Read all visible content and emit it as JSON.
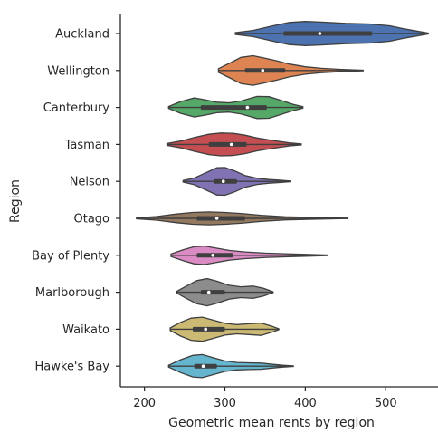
{
  "chart_data": {
    "type": "violin",
    "orientation": "horizontal",
    "title": "",
    "xlabel": "Geometric mean rents by region",
    "ylabel": "Region",
    "xlim": [
      170,
      565
    ],
    "xticks": [
      200,
      300,
      400,
      500
    ],
    "grid": false,
    "categories": [
      "Auckland",
      "Wellington",
      "Canterbury",
      "Tasman",
      "Nelson",
      "Otago",
      "Bay of Plenty",
      "Marlborough",
      "Waikato",
      "Hawke's Bay"
    ],
    "colors": [
      "#4c72b0",
      "#dd8452",
      "#55a868",
      "#c44e52",
      "#8172b3",
      "#937860",
      "#da8bc3",
      "#8c8c8c",
      "#ccb974",
      "#64b5cd"
    ],
    "series": [
      {
        "category": "Auckland",
        "min": 313,
        "q1": 373,
        "median": 418,
        "q3": 483,
        "max": 553,
        "density": [
          [
            313,
            0.06
          ],
          [
            335,
            0.2
          ],
          [
            360,
            0.5
          ],
          [
            380,
            0.72
          ],
          [
            400,
            0.78
          ],
          [
            420,
            0.74
          ],
          [
            450,
            0.66
          ],
          [
            480,
            0.62
          ],
          [
            505,
            0.5
          ],
          [
            525,
            0.28
          ],
          [
            545,
            0.1
          ],
          [
            553,
            0.03
          ]
        ]
      },
      {
        "category": "Wellington",
        "min": 292,
        "q1": 325,
        "median": 347,
        "q3": 375,
        "max": 472,
        "density": [
          [
            292,
            0.12
          ],
          [
            305,
            0.45
          ],
          [
            320,
            0.85
          ],
          [
            335,
            0.96
          ],
          [
            350,
            0.8
          ],
          [
            365,
            0.62
          ],
          [
            380,
            0.42
          ],
          [
            400,
            0.24
          ],
          [
            420,
            0.14
          ],
          [
            445,
            0.07
          ],
          [
            472,
            0.02
          ]
        ]
      },
      {
        "category": "Canterbury",
        "min": 230,
        "q1": 270,
        "median": 328,
        "q3": 352,
        "max": 397,
        "density": [
          [
            230,
            0.06
          ],
          [
            245,
            0.38
          ],
          [
            262,
            0.62
          ],
          [
            275,
            0.5
          ],
          [
            290,
            0.34
          ],
          [
            305,
            0.3
          ],
          [
            320,
            0.42
          ],
          [
            340,
            0.72
          ],
          [
            355,
            0.7
          ],
          [
            370,
            0.45
          ],
          [
            385,
            0.2
          ],
          [
            397,
            0.05
          ]
        ]
      },
      {
        "category": "Tasman",
        "min": 228,
        "q1": 280,
        "median": 308,
        "q3": 327,
        "max": 395,
        "density": [
          [
            228,
            0.06
          ],
          [
            245,
            0.22
          ],
          [
            262,
            0.45
          ],
          [
            280,
            0.66
          ],
          [
            295,
            0.74
          ],
          [
            310,
            0.72
          ],
          [
            325,
            0.6
          ],
          [
            340,
            0.42
          ],
          [
            360,
            0.25
          ],
          [
            380,
            0.1
          ],
          [
            395,
            0.03
          ]
        ]
      },
      {
        "category": "Nelson",
        "min": 248,
        "q1": 286,
        "median": 298,
        "q3": 315,
        "max": 382,
        "density": [
          [
            248,
            0.05
          ],
          [
            262,
            0.22
          ],
          [
            276,
            0.55
          ],
          [
            290,
            0.88
          ],
          [
            300,
            0.9
          ],
          [
            312,
            0.68
          ],
          [
            325,
            0.38
          ],
          [
            340,
            0.2
          ],
          [
            355,
            0.12
          ],
          [
            370,
            0.07
          ],
          [
            382,
            0.02
          ]
        ]
      },
      {
        "category": "Otago",
        "min": 190,
        "q1": 265,
        "median": 290,
        "q3": 325,
        "max": 453,
        "density": [
          [
            190,
            0.03
          ],
          [
            215,
            0.12
          ],
          [
            240,
            0.28
          ],
          [
            260,
            0.38
          ],
          [
            280,
            0.42
          ],
          [
            300,
            0.38
          ],
          [
            320,
            0.32
          ],
          [
            345,
            0.2
          ],
          [
            375,
            0.1
          ],
          [
            410,
            0.06
          ],
          [
            453,
            0.01
          ]
        ]
      },
      {
        "category": "Bay of Plenty",
        "min": 233,
        "q1": 265,
        "median": 285,
        "q3": 310,
        "max": 428,
        "density": [
          [
            233,
            0.08
          ],
          [
            248,
            0.35
          ],
          [
            262,
            0.56
          ],
          [
            275,
            0.6
          ],
          [
            290,
            0.46
          ],
          [
            305,
            0.32
          ],
          [
            325,
            0.22
          ],
          [
            350,
            0.14
          ],
          [
            375,
            0.1
          ],
          [
            400,
            0.06
          ],
          [
            428,
            0.02
          ]
        ]
      },
      {
        "category": "Marlborough",
        "min": 240,
        "q1": 270,
        "median": 280,
        "q3": 300,
        "max": 360,
        "density": [
          [
            240,
            0.05
          ],
          [
            252,
            0.4
          ],
          [
            265,
            0.75
          ],
          [
            278,
            0.88
          ],
          [
            290,
            0.72
          ],
          [
            305,
            0.45
          ],
          [
            320,
            0.35
          ],
          [
            335,
            0.4
          ],
          [
            348,
            0.25
          ],
          [
            360,
            0.03
          ]
        ]
      },
      {
        "category": "Waikato",
        "min": 232,
        "q1": 260,
        "median": 276,
        "q3": 300,
        "max": 367,
        "density": [
          [
            232,
            0.08
          ],
          [
            245,
            0.45
          ],
          [
            258,
            0.72
          ],
          [
            272,
            0.78
          ],
          [
            285,
            0.6
          ],
          [
            300,
            0.38
          ],
          [
            315,
            0.3
          ],
          [
            330,
            0.35
          ],
          [
            345,
            0.4
          ],
          [
            358,
            0.2
          ],
          [
            367,
            0.03
          ]
        ]
      },
      {
        "category": "Hawke's Bay",
        "min": 230,
        "q1": 262,
        "median": 273,
        "q3": 290,
        "max": 385,
        "density": [
          [
            230,
            0.06
          ],
          [
            245,
            0.42
          ],
          [
            260,
            0.7
          ],
          [
            272,
            0.75
          ],
          [
            285,
            0.55
          ],
          [
            300,
            0.34
          ],
          [
            315,
            0.24
          ],
          [
            330,
            0.22
          ],
          [
            345,
            0.2
          ],
          [
            360,
            0.12
          ],
          [
            372,
            0.06
          ],
          [
            385,
            0.02
          ]
        ]
      }
    ]
  }
}
